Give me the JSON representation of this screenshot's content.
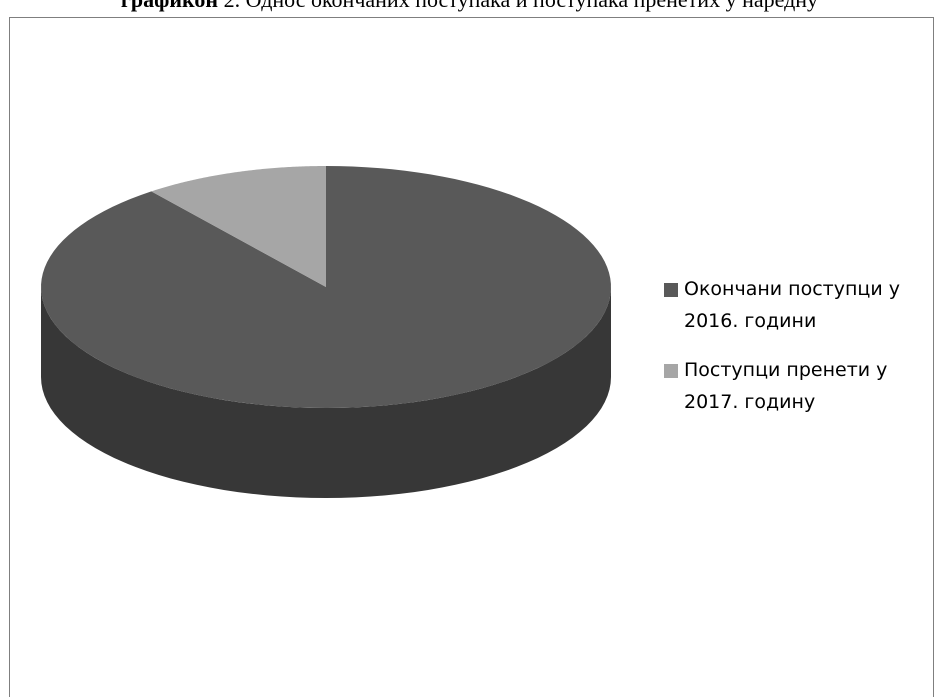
{
  "header": {
    "bold_part": "графикон",
    "rest": " 2. Однос окончаних поступака и поступака пренетих у наредну"
  },
  "chart_data": {
    "type": "pie",
    "title": "",
    "categories": [
      "Окончани поступци у 2016. години",
      "Поступци пренети у 2017. годину"
    ],
    "values": [
      89.5,
      10.5
    ],
    "colors": [
      "#595959",
      "#a6a6a6"
    ],
    "style": "3d",
    "legend_position": "right"
  }
}
